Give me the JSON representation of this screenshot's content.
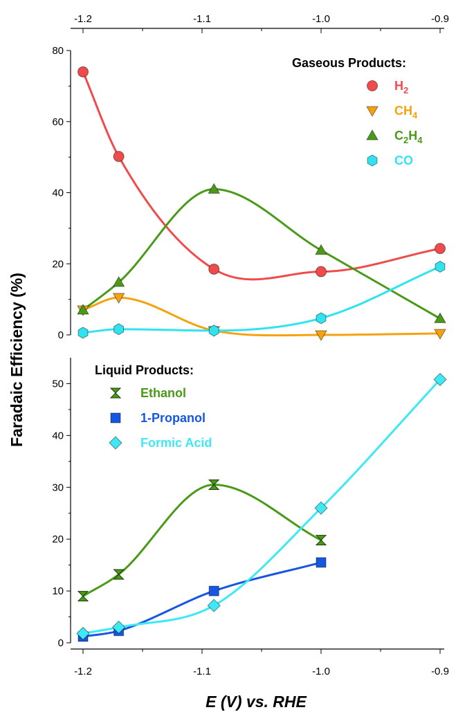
{
  "chart_data": {
    "type": "line",
    "ylabel": "Faradaic Efficiency (%)",
    "xlabel": "E (V) vs. RHE",
    "xlim": [
      -1.2,
      -0.9
    ],
    "x_ticks": [
      "-1.2",
      "-1.1",
      "-1.0",
      "-0.9"
    ],
    "grid": false,
    "panels": [
      {
        "name": "top",
        "legend_title": "Gaseous Products:",
        "legend_position": "top-right",
        "ylim": [
          0,
          80
        ],
        "y_ticks": [
          "0",
          "20",
          "40",
          "60",
          "80"
        ],
        "series": [
          {
            "name": "H2",
            "base": "H",
            "sub": "2",
            "color": "#f04b4b",
            "marker": "circle",
            "x": [
              -1.2,
              -1.17,
              -1.09,
              -1.0,
              -0.9
            ],
            "values": [
              74.0,
              50.2,
              18.5,
              17.8,
              24.3
            ]
          },
          {
            "name": "CH4",
            "base": "CH",
            "sub": "4",
            "color": "#f5a20f",
            "marker": "triangle-down",
            "x": [
              -1.2,
              -1.17,
              -1.09,
              -1.0,
              -0.9
            ],
            "values": [
              7.0,
              10.5,
              1.2,
              0.0,
              0.4
            ]
          },
          {
            "name": "C2H4",
            "base": "C",
            "sub": "2",
            "base2": "H",
            "sub2": "4",
            "color": "#4a9a18",
            "marker": "triangle-up",
            "x": [
              -1.2,
              -1.17,
              -1.09,
              -1.0,
              -0.9
            ],
            "values": [
              7.0,
              14.8,
              41.0,
              23.8,
              4.6
            ]
          },
          {
            "name": "CO",
            "base": "CO",
            "sub": "",
            "color": "#2fe4ee",
            "marker": "hexagon",
            "x": [
              -1.2,
              -1.17,
              -1.09,
              -1.0,
              -0.9
            ],
            "values": [
              0.6,
              1.6,
              1.2,
              4.7,
              19.2
            ]
          }
        ]
      },
      {
        "name": "bottom",
        "legend_title": "Liquid Products:",
        "legend_position": "top-left",
        "ylim": [
          0,
          55
        ],
        "y_ticks": [
          "0",
          "10",
          "20",
          "30",
          "40",
          "50"
        ],
        "series": [
          {
            "name": "Ethanol",
            "color": "#4a9a18",
            "marker": "hourglass",
            "x": [
              -1.2,
              -1.17,
              -1.09,
              -1.0
            ],
            "values": [
              9.0,
              13.2,
              30.5,
              19.8
            ]
          },
          {
            "name": "1-Propanol",
            "color": "#1656e0",
            "marker": "square",
            "x": [
              -1.2,
              -1.17,
              -1.09,
              -1.0
            ],
            "values": [
              1.2,
              2.3,
              10.0,
              15.5
            ]
          },
          {
            "name": "Formic Acid",
            "color": "#3fe8f5",
            "marker": "diamond",
            "x": [
              -1.2,
              -1.17,
              -1.09,
              -1.0,
              -0.9
            ],
            "values": [
              1.8,
              3.0,
              7.2,
              26.0,
              50.8
            ]
          }
        ]
      }
    ]
  }
}
